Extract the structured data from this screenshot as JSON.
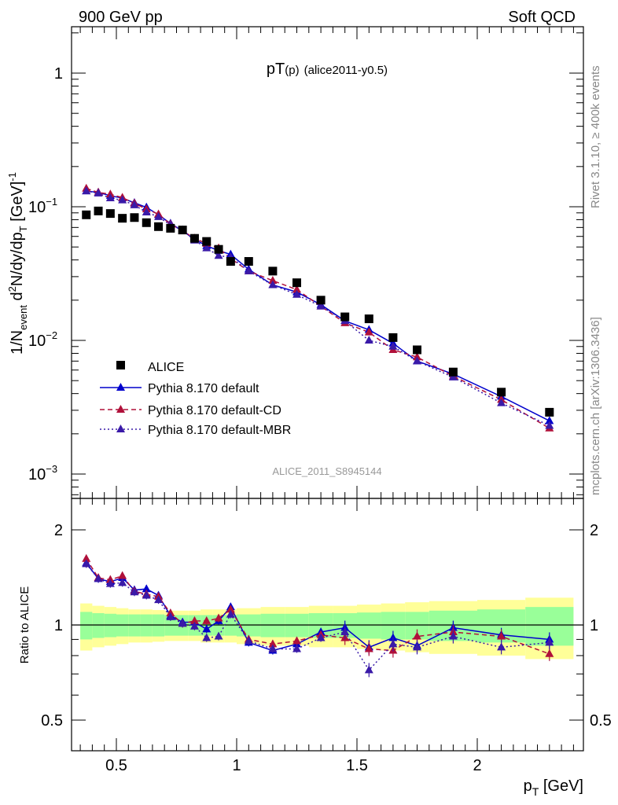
{
  "header": {
    "left": "900 GeV pp",
    "right": "Soft QCD"
  },
  "side_labels": {
    "rivet": "Rivet 3.1.10, ≥ 400k events",
    "mcplots": "mcplots.cern.ch [arXiv:1306.3436]"
  },
  "colors": {
    "alice": "#000000",
    "default": "#0000cc",
    "cd": "#b0103a",
    "mbr": "#3a1aa8",
    "band_outer": "#ffff99",
    "band_inner": "#99ff99"
  },
  "chart_data": [
    {
      "type": "scatter",
      "title": "pT(p) (alice2011-y0.5)",
      "title_main": "pT",
      "title_paren": "(p)",
      "title_rest": "(alice2011-y0.5)",
      "analysis_label": "ALICE_2011_S8945144",
      "ylabel": "1/N_event d²N/dy/dp_T [GeV]⁻¹",
      "ylabel_parts": {
        "a": "1/N",
        "b": "event",
        "c": " d",
        "d": "2",
        "e": "N/dy/dp",
        "f": "T",
        "g": " [GeV]",
        "h": "-1"
      },
      "yscale": "log",
      "ylim": [
        0.0007,
        2.0
      ],
      "xlim": [
        0.3,
        2.45
      ],
      "yticks": [
        {
          "value": 1,
          "label": "1"
        },
        {
          "value": 0.1,
          "label": "10",
          "exp": "−1"
        },
        {
          "value": 0.01,
          "label": "10",
          "exp": "−2"
        },
        {
          "value": 0.001,
          "label": "10",
          "exp": "−3"
        }
      ],
      "legend_position": "lower-left",
      "legend": {
        "alice": "ALICE",
        "default": "Pythia 8.170 default",
        "cd": "Pythia 8.170 default-CD",
        "mbr": "Pythia 8.170 default-MBR"
      },
      "x": [
        0.375,
        0.425,
        0.475,
        0.525,
        0.575,
        0.625,
        0.675,
        0.725,
        0.775,
        0.825,
        0.875,
        0.925,
        0.975,
        1.05,
        1.15,
        1.25,
        1.35,
        1.45,
        1.55,
        1.65,
        1.75,
        1.9,
        2.1,
        2.3
      ],
      "series": [
        {
          "name": "ALICE",
          "values": [
            0.087,
            0.093,
            0.089,
            0.082,
            0.083,
            0.076,
            0.071,
            0.069,
            0.067,
            0.058,
            0.055,
            0.048,
            0.039,
            0.039,
            0.033,
            0.027,
            0.02,
            0.015,
            0.0145,
            0.0105,
            0.0085,
            0.0058,
            0.0041,
            0.0029
          ]
        },
        {
          "name": "Pythia 8.170 default",
          "values": [
            0.131,
            0.128,
            0.121,
            0.116,
            0.107,
            0.099,
            0.087,
            0.075,
            0.066,
            0.057,
            0.051,
            0.047,
            0.044,
            0.034,
            0.026,
            0.023,
            0.0185,
            0.014,
            0.012,
            0.0095,
            0.007,
            0.0056,
            0.0038,
            0.0025
          ]
        },
        {
          "name": "Pythia 8.170 default-CD",
          "values": [
            0.137,
            0.128,
            0.124,
            0.117,
            0.106,
            0.096,
            0.088,
            0.074,
            0.066,
            0.058,
            0.053,
            0.049,
            0.041,
            0.033,
            0.028,
            0.024,
            0.018,
            0.0135,
            0.0115,
            0.0085,
            0.0075,
            0.0054,
            0.0036,
            0.0022
          ]
        },
        {
          "name": "Pythia 8.170 default-MBR",
          "values": [
            0.131,
            0.126,
            0.116,
            0.112,
            0.103,
            0.091,
            0.084,
            0.073,
            0.067,
            0.056,
            0.049,
            0.043,
            0.042,
            0.033,
            0.026,
            0.022,
            0.018,
            0.014,
            0.01,
            0.009,
            0.007,
            0.0053,
            0.0034,
            0.0023
          ]
        }
      ]
    },
    {
      "type": "line",
      "ylabel": "Ratio to ALICE",
      "xlabel": "p_T [GeV]",
      "xlabel_parts": {
        "a": "p",
        "b": "T",
        "c": " [GeV]"
      },
      "yscale": "log",
      "ylim": [
        0.42,
        2.5
      ],
      "xlim": [
        0.3,
        2.45
      ],
      "xticks": [
        {
          "value": 0.5,
          "label": "0.5"
        },
        {
          "value": 1,
          "label": "1"
        },
        {
          "value": 1.5,
          "label": "1.5"
        },
        {
          "value": 2,
          "label": "2"
        }
      ],
      "yticks": [
        {
          "value": 0.5,
          "label": "0.5"
        },
        {
          "value": 1,
          "label": "1"
        },
        {
          "value": 2,
          "label": "2"
        }
      ],
      "bin_edges": [
        0.35,
        0.4,
        0.45,
        0.5,
        0.55,
        0.6,
        0.65,
        0.7,
        0.75,
        0.8,
        0.85,
        0.9,
        0.95,
        1.0,
        1.1,
        1.2,
        1.3,
        1.4,
        1.5,
        1.6,
        1.7,
        1.8,
        2.0,
        2.2,
        2.4
      ],
      "band_inner": [
        0.1,
        0.09,
        0.085,
        0.08,
        0.08,
        0.08,
        0.08,
        0.075,
        0.075,
        0.075,
        0.075,
        0.075,
        0.075,
        0.08,
        0.085,
        0.085,
        0.09,
        0.09,
        0.095,
        0.1,
        0.1,
        0.11,
        0.12,
        0.14
      ],
      "band_outer": [
        0.17,
        0.15,
        0.14,
        0.13,
        0.12,
        0.12,
        0.115,
        0.11,
        0.11,
        0.11,
        0.12,
        0.12,
        0.12,
        0.13,
        0.14,
        0.14,
        0.15,
        0.15,
        0.16,
        0.17,
        0.18,
        0.19,
        0.2,
        0.22
      ],
      "x": [
        0.375,
        0.425,
        0.475,
        0.525,
        0.575,
        0.625,
        0.675,
        0.725,
        0.775,
        0.825,
        0.875,
        0.925,
        0.975,
        1.05,
        1.15,
        1.25,
        1.35,
        1.45,
        1.55,
        1.65,
        1.75,
        1.9,
        2.1,
        2.3
      ],
      "series": [
        {
          "name": "Pythia 8.170 default",
          "values": [
            1.57,
            1.4,
            1.37,
            1.41,
            1.29,
            1.3,
            1.24,
            1.07,
            1.02,
            1.02,
            0.97,
            1.03,
            1.14,
            0.88,
            0.83,
            0.87,
            0.95,
            0.98,
            0.85,
            0.91,
            0.86,
            0.98,
            0.93,
            0.9
          ]
        },
        {
          "name": "Pythia 8.170 default-CD",
          "values": [
            1.62,
            1.41,
            1.39,
            1.43,
            1.28,
            1.25,
            1.23,
            1.09,
            1.01,
            1.03,
            1.03,
            1.05,
            1.12,
            0.9,
            0.87,
            0.89,
            0.93,
            0.91,
            0.84,
            0.83,
            0.92,
            0.95,
            0.92,
            0.81
          ]
        },
        {
          "name": "Pythia 8.170 default-MBR",
          "values": [
            1.56,
            1.4,
            1.35,
            1.36,
            1.27,
            1.24,
            1.2,
            1.06,
            1.01,
            0.99,
            0.91,
            0.92,
            1.08,
            0.89,
            0.84,
            0.84,
            0.91,
            0.95,
            0.72,
            0.87,
            0.85,
            0.92,
            0.85,
            0.88
          ]
        }
      ]
    }
  ]
}
